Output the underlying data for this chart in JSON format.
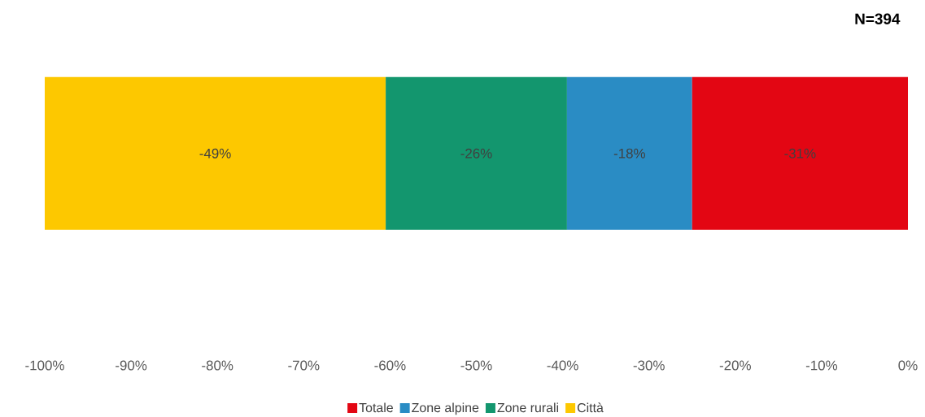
{
  "chart_data": {
    "type": "bar",
    "orientation": "horizontal",
    "stacked": true,
    "categories": [
      null
    ],
    "series": [
      {
        "name": "Totale",
        "color": "#e30613",
        "values": [
          -25
        ]
      },
      {
        "name": "Zone alpine",
        "color": "#2a8cc4",
        "values": [
          -14.5
        ]
      },
      {
        "name": "Zone rurali",
        "color": "#13966e",
        "values": [
          -21
        ]
      },
      {
        "name": "Città",
        "color": "#fdc800",
        "values": [
          -39.5
        ]
      }
    ],
    "xlim": [
      -100,
      0
    ],
    "xticks": [
      {
        "value": -100,
        "label": "-100%"
      },
      {
        "value": -90,
        "label": "-90%"
      },
      {
        "value": -80,
        "label": "-80%"
      },
      {
        "value": -70,
        "label": "-70%"
      },
      {
        "value": -60,
        "label": "-60%"
      },
      {
        "value": -50,
        "label": "-50%"
      },
      {
        "value": -40,
        "label": "-40%"
      },
      {
        "value": -30,
        "label": "-30%"
      },
      {
        "value": -20,
        "label": "-20%"
      },
      {
        "value": -10,
        "label": "-10%"
      },
      {
        "value": 0,
        "label": "0%"
      }
    ],
    "legend": "bottom",
    "annotations": [
      "N=394",
      "-31%",
      "-18%",
      "-26%",
      "-49%"
    ]
  }
}
